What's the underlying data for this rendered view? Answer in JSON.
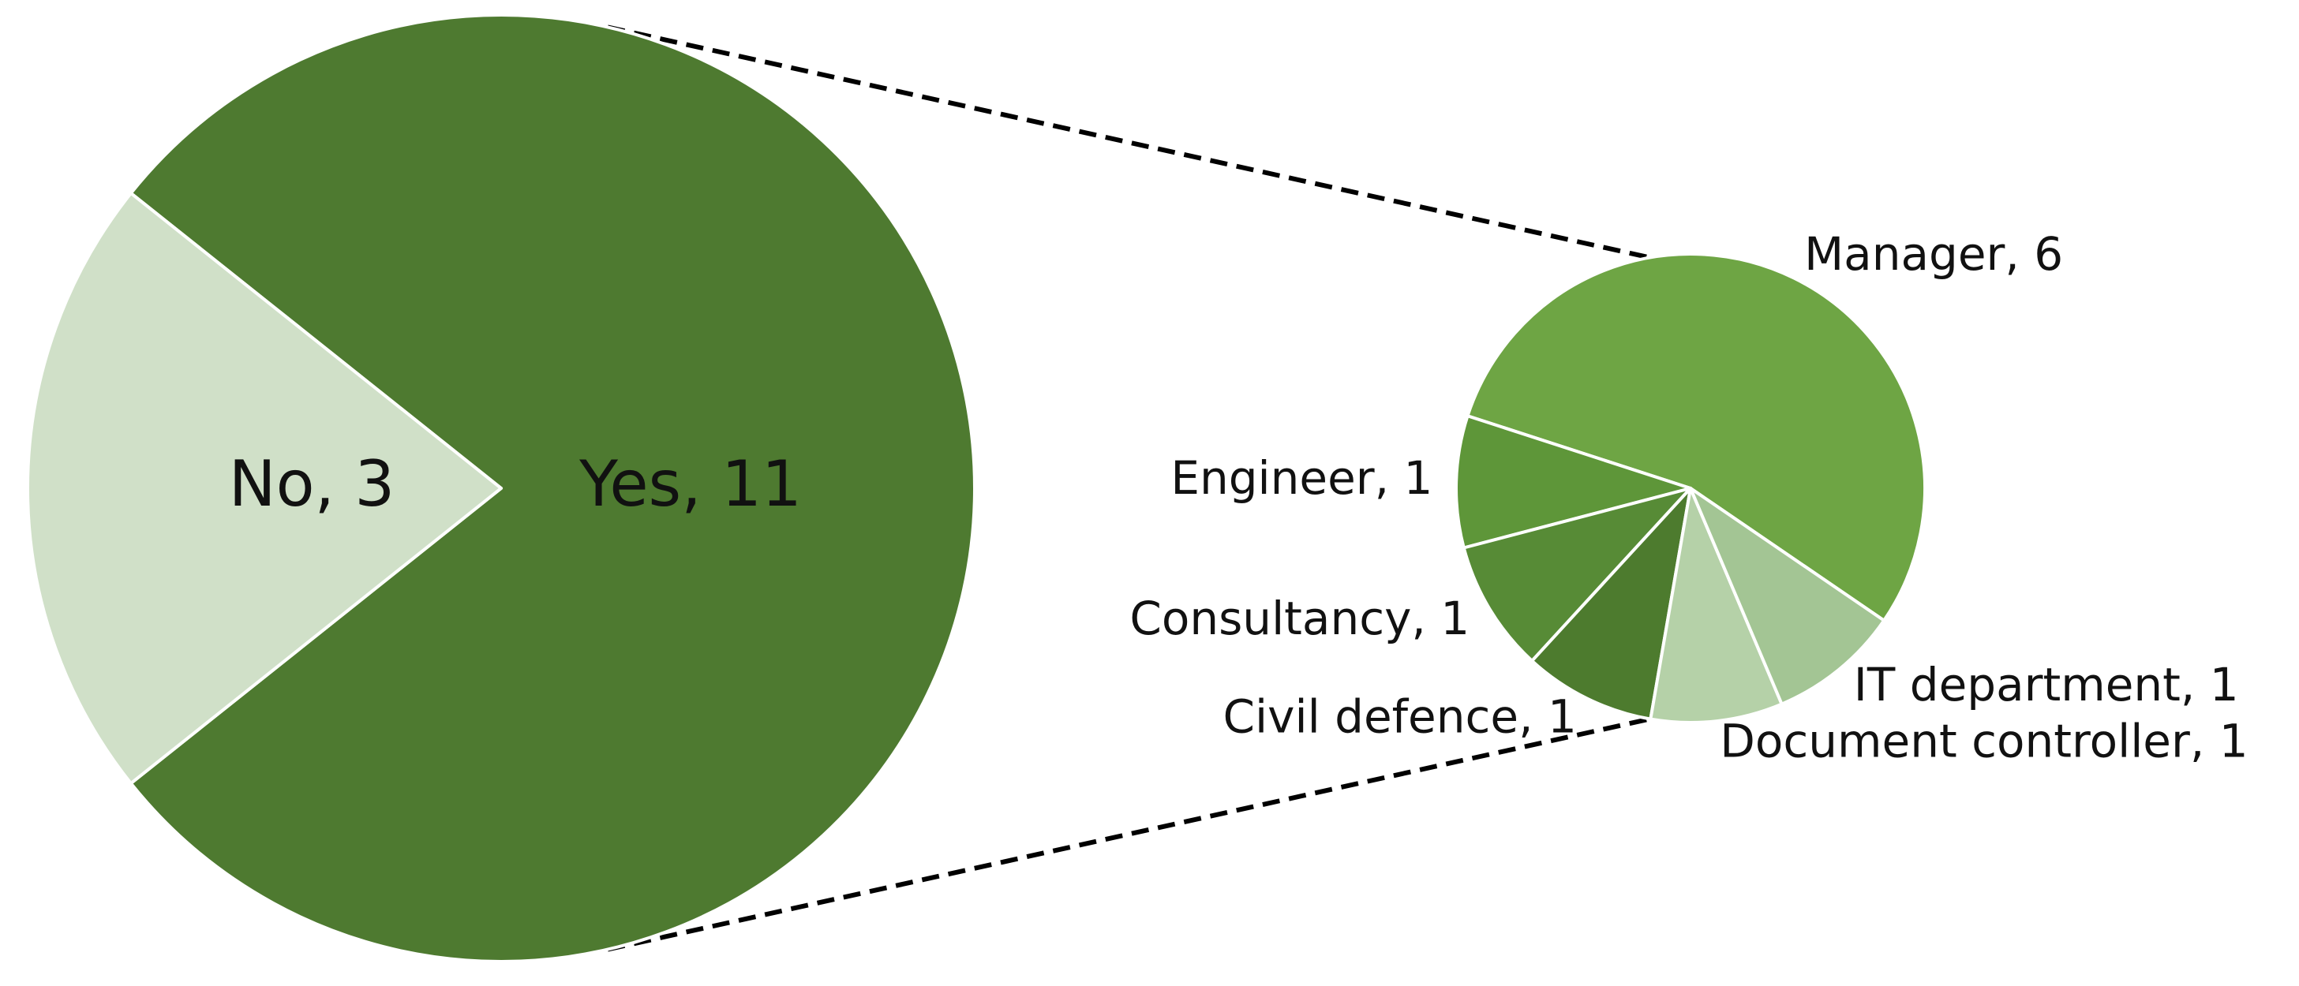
{
  "chart_data": [
    {
      "type": "pie",
      "values": [
        11,
        3
      ],
      "value_labels": [
        "Yes, 11",
        "No, 3"
      ],
      "colors": [
        "#4e7a30",
        "#d0e0c8"
      ]
    },
    {
      "type": "pie",
      "values": [
        6,
        1,
        1,
        1,
        1,
        1
      ],
      "value_labels": [
        "Manager, 6",
        "Engineer, 1",
        "Consultancy, 1",
        "Civil defence, 1",
        "Document controller, 1",
        "IT department, 1"
      ],
      "colors": [
        "#6ea544",
        "#5e9639",
        "#578b36",
        "#4d7b2e",
        "#b5d1a8",
        "#a3c594"
      ]
    }
  ]
}
